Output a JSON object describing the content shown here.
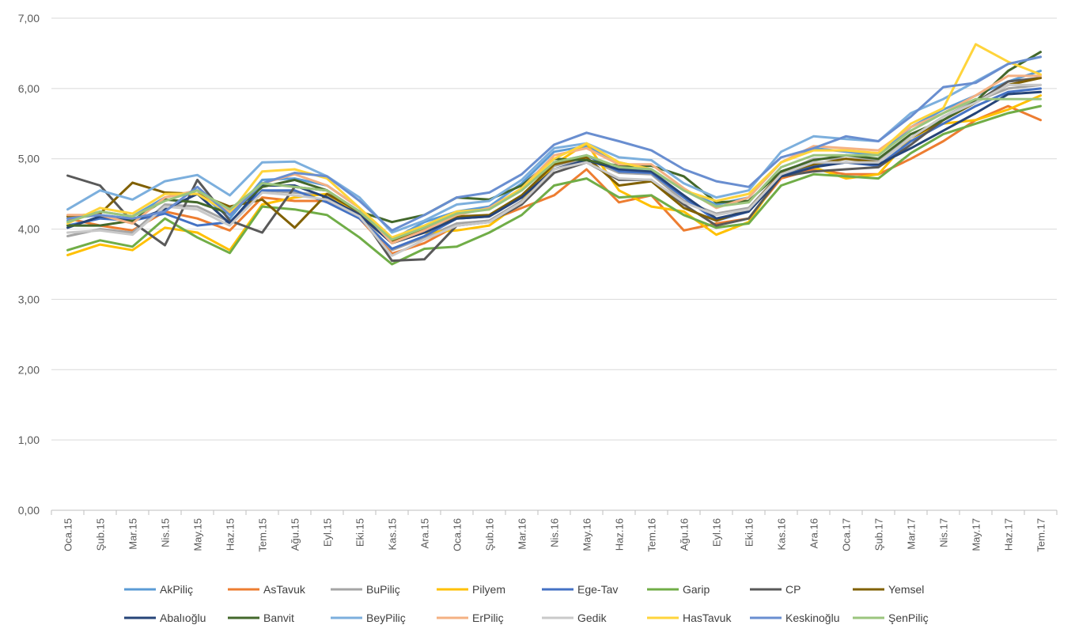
{
  "chart_data": {
    "type": "line",
    "title": "",
    "xlabel": "",
    "ylabel": "",
    "ylim": [
      0,
      7
    ],
    "yticks": [
      "0,00",
      "1,00",
      "2,00",
      "3,00",
      "4,00",
      "5,00",
      "6,00",
      "7,00"
    ],
    "grid": true,
    "legend_position": "bottom",
    "categories": [
      "Oca.15",
      "Şub.15",
      "Mar.15",
      "Nis.15",
      "May.15",
      "Haz.15",
      "Tem.15",
      "Ağu.15",
      "Eyl.15",
      "Eki.15",
      "Kas.15",
      "Ara.15",
      "Oca.16",
      "Şub.16",
      "Mar.16",
      "Nis.16",
      "May.16",
      "Haz.16",
      "Tem.16",
      "Ağu.16",
      "Eyl.16",
      "Eki.16",
      "Kas.16",
      "Ara.16",
      "Oca.17",
      "Şub.17",
      "Mar.17",
      "Nis.17",
      "May.17",
      "Haz.17",
      "Tem.17"
    ],
    "series": [
      {
        "name": "AkPiliç",
        "color": "#5B9BD5",
        "values": [
          4.12,
          4.25,
          4.18,
          4.45,
          4.55,
          4.15,
          4.7,
          4.72,
          4.62,
          4.3,
          3.85,
          4.1,
          4.25,
          4.32,
          4.65,
          5.1,
          5.18,
          4.95,
          4.85,
          4.55,
          4.35,
          4.45,
          4.95,
          5.15,
          5.1,
          5.05,
          5.45,
          5.7,
          5.9,
          6.1,
          6.25
        ]
      },
      {
        "name": "AsTavuk",
        "color": "#ED7D31",
        "values": [
          4.15,
          4.05,
          3.98,
          4.25,
          4.15,
          3.98,
          4.45,
          4.4,
          4.4,
          4.15,
          3.65,
          3.8,
          4.05,
          4.12,
          4.3,
          4.48,
          4.85,
          4.38,
          4.48,
          3.98,
          4.08,
          4.15,
          4.72,
          4.85,
          4.78,
          4.78,
          5.0,
          5.25,
          5.55,
          5.75,
          5.55
        ]
      },
      {
        "name": "BuPiliç",
        "color": "#A5A5A5",
        "values": [
          3.9,
          4.0,
          3.95,
          4.35,
          4.32,
          4.1,
          4.55,
          4.52,
          4.48,
          4.2,
          3.7,
          3.88,
          4.08,
          4.12,
          4.4,
          4.9,
          5.0,
          4.8,
          4.78,
          4.4,
          4.22,
          4.3,
          4.8,
          5.0,
          5.0,
          4.98,
          5.3,
          5.6,
          5.82,
          6.0,
          6.05
        ]
      },
      {
        "name": "Pilyem",
        "color": "#FFC000",
        "values": [
          3.63,
          3.78,
          3.7,
          4.02,
          3.95,
          3.7,
          4.35,
          4.45,
          4.5,
          4.22,
          3.8,
          3.95,
          3.98,
          4.05,
          4.38,
          4.92,
          5.22,
          4.55,
          4.32,
          4.25,
          3.92,
          4.1,
          4.78,
          4.88,
          4.72,
          4.78,
          5.3,
          5.5,
          5.55,
          5.7,
          5.9
        ]
      },
      {
        "name": "Ege-Tav",
        "color": "#4472C4",
        "values": [
          4.05,
          4.15,
          4.12,
          4.22,
          4.05,
          4.1,
          4.55,
          4.55,
          4.38,
          4.15,
          3.72,
          3.9,
          4.15,
          4.18,
          4.45,
          4.95,
          5.05,
          4.82,
          4.8,
          4.45,
          4.12,
          4.25,
          4.75,
          4.9,
          4.95,
          4.9,
          5.25,
          5.5,
          5.75,
          5.95,
          6.0
        ]
      },
      {
        "name": "Garip",
        "color": "#70AD47",
        "values": [
          3.7,
          3.84,
          3.75,
          4.15,
          3.88,
          3.66,
          4.32,
          4.28,
          4.2,
          3.88,
          3.5,
          3.72,
          3.75,
          3.95,
          4.2,
          4.62,
          4.72,
          4.45,
          4.48,
          4.2,
          4.02,
          4.08,
          4.62,
          4.78,
          4.75,
          4.72,
          5.08,
          5.35,
          5.5,
          5.65,
          5.75
        ]
      },
      {
        "name": "CP",
        "color": "#595959",
        "values": [
          4.76,
          4.62,
          4.1,
          3.77,
          4.7,
          4.12,
          3.95,
          4.6,
          4.55,
          4.22,
          3.55,
          3.57,
          4.05,
          4.1,
          4.35,
          4.8,
          4.95,
          4.7,
          4.7,
          4.35,
          4.05,
          4.15,
          4.75,
          4.82,
          4.85,
          4.88,
          5.2,
          5.55,
          5.8,
          6.1,
          6.15
        ]
      },
      {
        "name": "Yemsel",
        "color": "#806000",
        "values": [
          4.18,
          4.22,
          4.66,
          4.52,
          4.5,
          4.32,
          4.42,
          4.02,
          4.5,
          4.25,
          3.82,
          4.0,
          4.18,
          4.2,
          4.48,
          4.92,
          5.02,
          4.62,
          4.68,
          4.3,
          4.12,
          4.28,
          4.8,
          4.92,
          5.0,
          4.95,
          5.3,
          5.55,
          5.8,
          6.05,
          6.15
        ]
      },
      {
        "name": "Abalıoğlu",
        "color": "#264478",
        "values": [
          4.02,
          4.18,
          4.12,
          4.28,
          4.5,
          4.08,
          4.62,
          4.62,
          4.45,
          4.2,
          3.8,
          3.95,
          4.15,
          4.18,
          4.45,
          4.85,
          4.98,
          4.85,
          4.82,
          4.48,
          4.15,
          4.25,
          4.75,
          4.88,
          4.95,
          4.92,
          5.15,
          5.4,
          5.65,
          5.92,
          5.95
        ]
      },
      {
        "name": "Banvit",
        "color": "#43682B",
        "values": [
          4.05,
          4.05,
          4.12,
          4.42,
          4.38,
          4.22,
          4.6,
          4.7,
          4.55,
          4.25,
          4.1,
          4.2,
          4.45,
          4.42,
          4.62,
          5.0,
          4.98,
          4.9,
          4.9,
          4.75,
          4.38,
          4.4,
          4.82,
          4.98,
          5.05,
          5.0,
          5.35,
          5.55,
          5.82,
          6.25,
          6.52
        ]
      },
      {
        "name": "BeyPiliç",
        "color": "#7CAFDD",
        "values": [
          4.28,
          4.55,
          4.42,
          4.68,
          4.77,
          4.48,
          4.95,
          4.96,
          4.75,
          4.45,
          3.95,
          4.12,
          4.35,
          4.4,
          4.7,
          5.15,
          5.22,
          5.02,
          4.98,
          4.65,
          4.45,
          4.55,
          5.1,
          5.32,
          5.28,
          5.25,
          5.65,
          5.85,
          6.1,
          6.35,
          6.45
        ]
      },
      {
        "name": "ErPiliç",
        "color": "#F4B183",
        "values": [
          4.2,
          4.2,
          4.08,
          4.45,
          4.55,
          4.25,
          4.65,
          4.78,
          4.62,
          4.3,
          3.8,
          3.98,
          4.2,
          4.3,
          4.58,
          5.05,
          5.15,
          4.92,
          4.92,
          4.58,
          4.3,
          4.45,
          4.95,
          5.18,
          5.15,
          5.12,
          5.45,
          5.65,
          5.9,
          6.18,
          6.18
        ]
      },
      {
        "name": "Gedik",
        "color": "#C9C9C9",
        "values": [
          3.95,
          3.98,
          3.92,
          4.32,
          4.28,
          4.05,
          4.52,
          4.48,
          4.42,
          4.18,
          3.62,
          3.85,
          4.05,
          4.1,
          4.38,
          4.85,
          4.95,
          4.72,
          4.7,
          4.38,
          4.2,
          4.28,
          4.78,
          4.95,
          4.95,
          4.95,
          5.3,
          5.6,
          5.8,
          6.05,
          6.05
        ]
      },
      {
        "name": "HasTavuk",
        "color": "#FFD43B",
        "values": [
          4.08,
          4.3,
          4.22,
          4.5,
          4.5,
          4.22,
          4.82,
          4.85,
          4.72,
          4.3,
          3.88,
          4.05,
          4.25,
          4.28,
          4.58,
          5.0,
          5.22,
          4.95,
          4.85,
          4.55,
          4.4,
          4.5,
          4.95,
          5.12,
          5.12,
          5.08,
          5.5,
          5.72,
          6.63,
          6.38,
          6.2
        ]
      },
      {
        "name": "Keskinoğlu",
        "color": "#698ED0",
        "values": [
          4.15,
          4.2,
          4.15,
          4.25,
          4.6,
          4.2,
          4.65,
          4.8,
          4.75,
          4.4,
          3.98,
          4.2,
          4.45,
          4.52,
          4.78,
          5.2,
          5.37,
          5.25,
          5.12,
          4.85,
          4.68,
          4.6,
          5.02,
          5.15,
          5.32,
          5.25,
          5.6,
          6.02,
          6.08,
          6.35,
          6.45
        ]
      },
      {
        "name": "ŞenPiliç",
        "color": "#9BC57E",
        "values": [
          4.1,
          4.25,
          4.18,
          4.4,
          4.55,
          4.28,
          4.65,
          4.6,
          4.55,
          4.25,
          3.85,
          4.02,
          4.22,
          4.28,
          4.55,
          4.95,
          5.05,
          4.88,
          4.85,
          4.55,
          4.32,
          4.38,
          4.88,
          5.05,
          5.05,
          5.05,
          5.4,
          5.65,
          5.85,
          5.85,
          5.85
        ]
      }
    ]
  }
}
